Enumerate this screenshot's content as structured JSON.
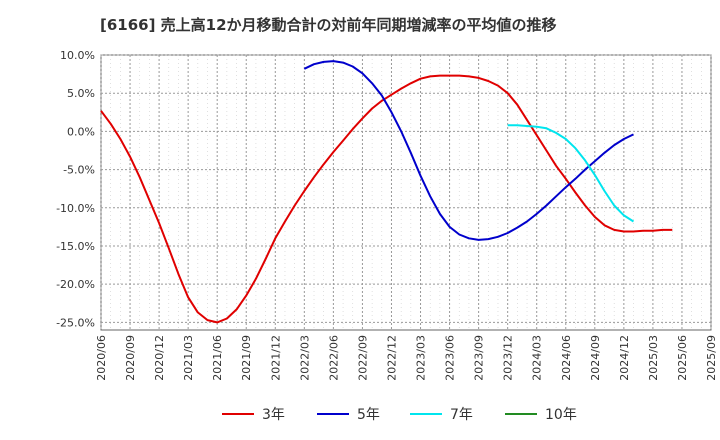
{
  "chart_data": {
    "type": "line",
    "title": "[6166]  売上高12か月移動合計の対前年同期増減率の平均値の推移",
    "xlabel": "",
    "ylabel": "",
    "ylim": [
      -26,
      10
    ],
    "yticks": [
      10,
      5,
      0,
      -5,
      -10,
      -15,
      -20,
      -25
    ],
    "ytick_labels": [
      "10.0%",
      "5.0%",
      "0.0%",
      "-5.0%",
      "-10.0%",
      "-15.0%",
      "-20.0%",
      "-25.0%"
    ],
    "xlim": [
      "2020-06",
      "2025-09"
    ],
    "xtick_labels": [
      "2020/06",
      "2020/09",
      "2020/12",
      "2021/03",
      "2021/06",
      "2021/09",
      "2021/12",
      "2022/03",
      "2022/06",
      "2022/09",
      "2022/12",
      "2023/03",
      "2023/06",
      "2023/09",
      "2023/12",
      "2024/03",
      "2024/06",
      "2024/09",
      "2024/12",
      "2025/03",
      "2025/06",
      "2025/09"
    ],
    "grid": true,
    "legend_position": "bottom",
    "series": [
      {
        "name": "3年",
        "color": "#e00000",
        "points": [
          [
            "2020-06",
            2.7
          ],
          [
            "2020-07",
            1.0
          ],
          [
            "2020-08",
            -1.0
          ],
          [
            "2020-09",
            -3.3
          ],
          [
            "2020-10",
            -6.0
          ],
          [
            "2020-11",
            -9.0
          ],
          [
            "2020-12",
            -12.0
          ],
          [
            "2021-01",
            -15.3
          ],
          [
            "2021-02",
            -18.7
          ],
          [
            "2021-03",
            -21.7
          ],
          [
            "2021-04",
            -23.7
          ],
          [
            "2021-05",
            -24.7
          ],
          [
            "2021-06",
            -25.0
          ],
          [
            "2021-07",
            -24.5
          ],
          [
            "2021-08",
            -23.3
          ],
          [
            "2021-09",
            -21.5
          ],
          [
            "2021-10",
            -19.3
          ],
          [
            "2021-11",
            -16.7
          ],
          [
            "2021-12",
            -14.0
          ],
          [
            "2022-01",
            -11.8
          ],
          [
            "2022-02",
            -9.7
          ],
          [
            "2022-03",
            -7.8
          ],
          [
            "2022-04",
            -6.0
          ],
          [
            "2022-05",
            -4.3
          ],
          [
            "2022-06",
            -2.7
          ],
          [
            "2022-07",
            -1.2
          ],
          [
            "2022-08",
            0.3
          ],
          [
            "2022-09",
            1.7
          ],
          [
            "2022-10",
            3.0
          ],
          [
            "2022-11",
            4.0
          ],
          [
            "2022-12",
            4.8
          ],
          [
            "2023-01",
            5.6
          ],
          [
            "2023-02",
            6.3
          ],
          [
            "2023-03",
            6.9
          ],
          [
            "2023-04",
            7.2
          ],
          [
            "2023-05",
            7.3
          ],
          [
            "2023-06",
            7.3
          ],
          [
            "2023-07",
            7.3
          ],
          [
            "2023-08",
            7.2
          ],
          [
            "2023-09",
            7.0
          ],
          [
            "2023-10",
            6.6
          ],
          [
            "2023-11",
            6.0
          ],
          [
            "2023-12",
            5.0
          ],
          [
            "2024-01",
            3.5
          ],
          [
            "2024-02",
            1.5
          ],
          [
            "2024-03",
            -0.5
          ],
          [
            "2024-04",
            -2.5
          ],
          [
            "2024-05",
            -4.5
          ],
          [
            "2024-06",
            -6.2
          ],
          [
            "2024-07",
            -8.0
          ],
          [
            "2024-08",
            -9.7
          ],
          [
            "2024-09",
            -11.2
          ],
          [
            "2024-10",
            -12.3
          ],
          [
            "2024-11",
            -12.9
          ],
          [
            "2024-12",
            -13.1
          ],
          [
            "2025-01",
            -13.1
          ],
          [
            "2025-02",
            -13.0
          ],
          [
            "2025-03",
            -13.0
          ],
          [
            "2025-04",
            -12.9
          ],
          [
            "2025-05",
            -12.9
          ]
        ]
      },
      {
        "name": "5年",
        "color": "#0000cc",
        "points": [
          [
            "2022-03",
            8.2
          ],
          [
            "2022-04",
            8.8
          ],
          [
            "2022-05",
            9.1
          ],
          [
            "2022-06",
            9.2
          ],
          [
            "2022-07",
            9.0
          ],
          [
            "2022-08",
            8.5
          ],
          [
            "2022-09",
            7.6
          ],
          [
            "2022-10",
            6.3
          ],
          [
            "2022-11",
            4.7
          ],
          [
            "2022-12",
            2.5
          ],
          [
            "2023-01",
            0.0
          ],
          [
            "2023-02",
            -2.8
          ],
          [
            "2023-03",
            -5.8
          ],
          [
            "2023-04",
            -8.5
          ],
          [
            "2023-05",
            -10.8
          ],
          [
            "2023-06",
            -12.5
          ],
          [
            "2023-07",
            -13.5
          ],
          [
            "2023-08",
            -14.0
          ],
          [
            "2023-09",
            -14.2
          ],
          [
            "2023-10",
            -14.1
          ],
          [
            "2023-11",
            -13.8
          ],
          [
            "2023-12",
            -13.3
          ],
          [
            "2024-01",
            -12.6
          ],
          [
            "2024-02",
            -11.8
          ],
          [
            "2024-03",
            -10.8
          ],
          [
            "2024-04",
            -9.7
          ],
          [
            "2024-05",
            -8.5
          ],
          [
            "2024-06",
            -7.3
          ],
          [
            "2024-07",
            -6.2
          ],
          [
            "2024-08",
            -5.0
          ],
          [
            "2024-09",
            -3.9
          ],
          [
            "2024-10",
            -2.8
          ],
          [
            "2024-11",
            -1.8
          ],
          [
            "2024-12",
            -1.0
          ],
          [
            "2025-01",
            -0.4
          ]
        ]
      },
      {
        "name": "7年",
        "color": "#00e5ee",
        "points": [
          [
            "2023-12",
            0.8
          ],
          [
            "2024-01",
            0.8
          ],
          [
            "2024-02",
            0.7
          ],
          [
            "2024-03",
            0.6
          ],
          [
            "2024-04",
            0.4
          ],
          [
            "2024-05",
            -0.2
          ],
          [
            "2024-06",
            -1.0
          ],
          [
            "2024-07",
            -2.2
          ],
          [
            "2024-08",
            -3.8
          ],
          [
            "2024-09",
            -5.7
          ],
          [
            "2024-10",
            -7.8
          ],
          [
            "2024-11",
            -9.7
          ],
          [
            "2024-12",
            -11.0
          ],
          [
            "2025-01",
            -11.8
          ]
        ]
      },
      {
        "name": "10年",
        "color": "#228b22",
        "points": []
      }
    ]
  }
}
